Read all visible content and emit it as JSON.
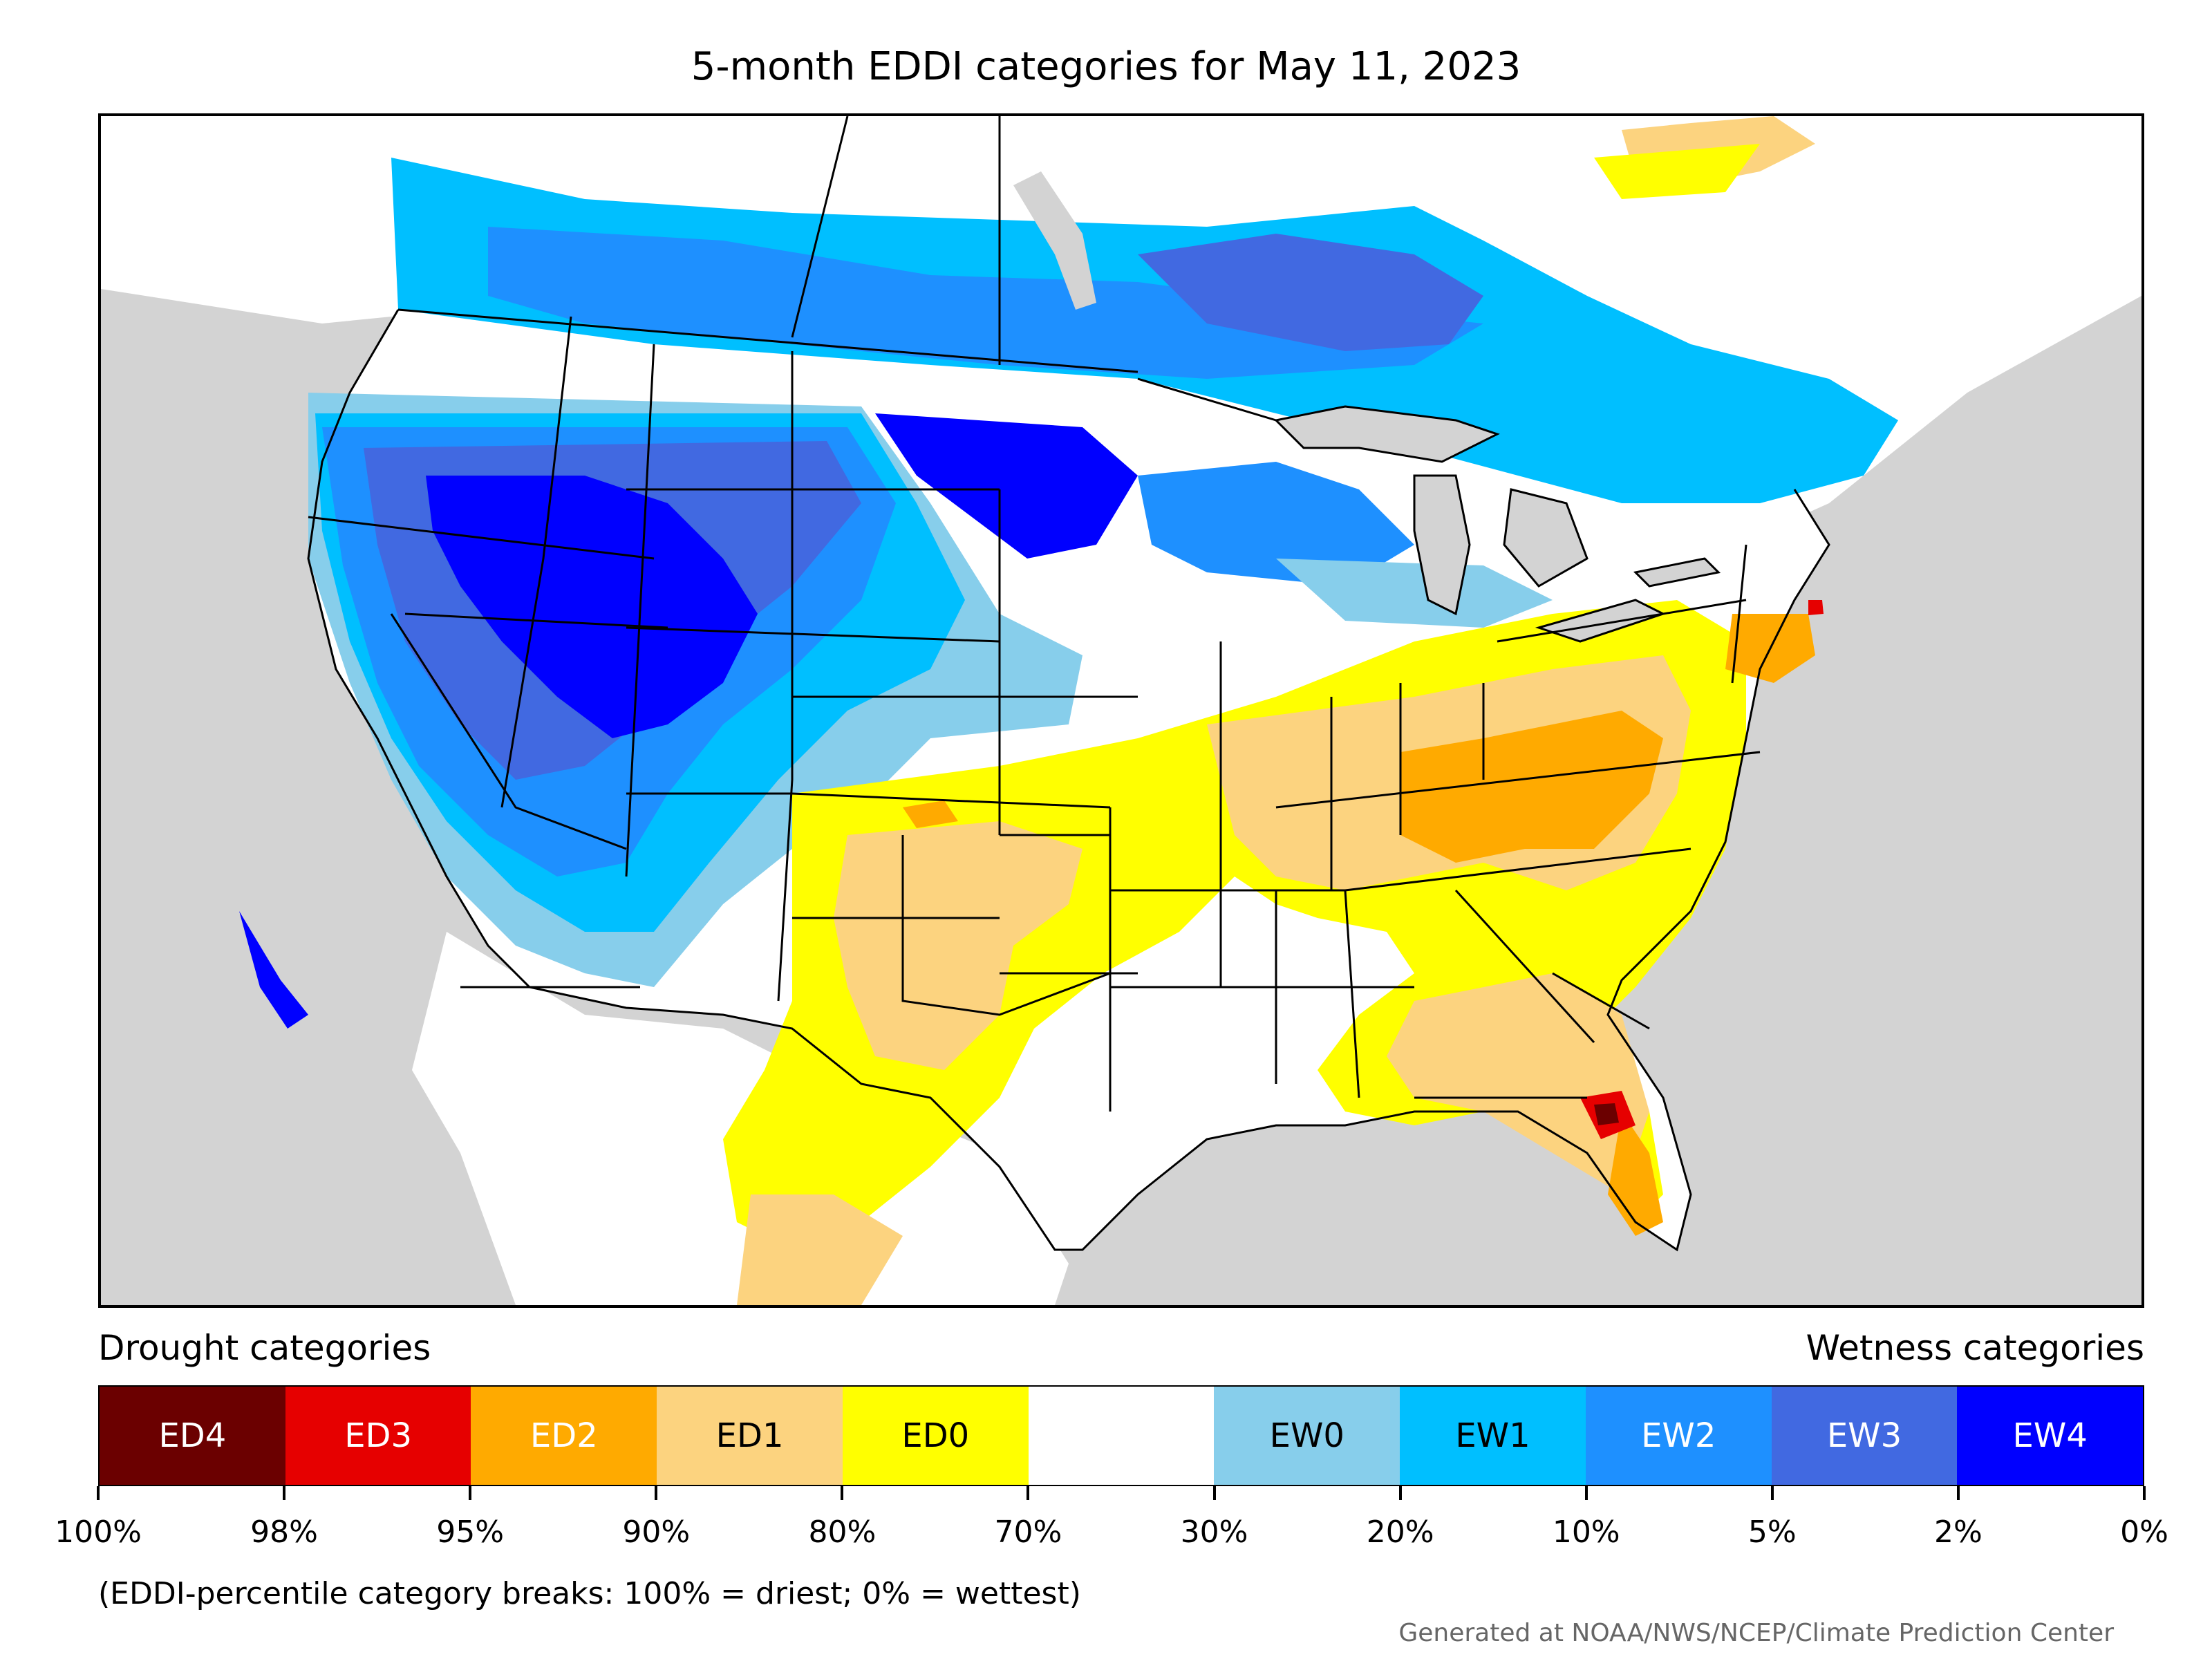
{
  "title": "5-month EDDI categories for May 11, 2023",
  "map": {
    "region": "Contiguous United States",
    "background_color": "#d3d3d3",
    "land_color": "#ffffff"
  },
  "legend": {
    "drought_label": "Drought categories",
    "wetness_label": "Wetness categories",
    "categories": [
      {
        "label": "ED4",
        "color": "#6b0000",
        "text_color": "#ffffff"
      },
      {
        "label": "ED3",
        "color": "#e60000",
        "text_color": "#ffffff"
      },
      {
        "label": "ED2",
        "color": "#ffaa00",
        "text_color": "#ffffff"
      },
      {
        "label": "ED1",
        "color": "#fcd37f",
        "text_color": "#000000"
      },
      {
        "label": "ED0",
        "color": "#ffff00",
        "text_color": "#000000"
      },
      {
        "label": "",
        "color": "#ffffff",
        "text_color": "#000000"
      },
      {
        "label": "EW0",
        "color": "#87ceeb",
        "text_color": "#000000"
      },
      {
        "label": "EW1",
        "color": "#00bfff",
        "text_color": "#000000"
      },
      {
        "label": "EW2",
        "color": "#1e90ff",
        "text_color": "#ffffff"
      },
      {
        "label": "EW3",
        "color": "#4169e1",
        "text_color": "#ffffff"
      },
      {
        "label": "EW4",
        "color": "#0000ff",
        "text_color": "#ffffff"
      }
    ],
    "breaks": [
      "100%",
      "98%",
      "95%",
      "90%",
      "80%",
      "70%",
      "30%",
      "20%",
      "10%",
      "5%",
      "2%",
      "0%"
    ]
  },
  "note": "(EDDI-percentile category breaks: 100% = driest; 0% = wettest)",
  "credit": "Generated at NOAA/NWS/NCEP/Climate Prediction Center"
}
